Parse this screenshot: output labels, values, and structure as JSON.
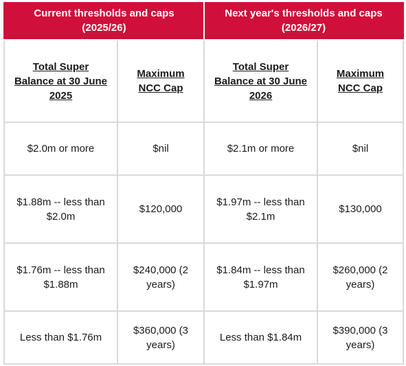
{
  "groups": {
    "current": "Current thresholds and caps (2025/26)",
    "next": "Next year's thresholds and caps (2026/27)"
  },
  "columns": [
    "Total Super Balance at 30 June 2025",
    "Maximum NCC Cap",
    "Total Super Balance at 30 June 2026",
    "Maximum NCC Cap"
  ],
  "rows": [
    [
      "$2.0m or more",
      "$nil",
      "$2.1m or more",
      "$nil"
    ],
    [
      "$1.88m -- less than $2.0m",
      "$120,000",
      "$1.97m -- less than $2.1m",
      "$130,000"
    ],
    [
      "$1.76m -- less than $1.88m",
      "$240,000 (2 years)",
      "$1.84m -- less than $1.97m",
      "$260,000 (2 years)"
    ],
    [
      "Less than $1.76m",
      "$360,000 (3 years)",
      "Less than $1.84m",
      "$390,000 (3 years)"
    ]
  ],
  "colors": {
    "header_bg": "#d0103a",
    "header_text": "#ffffff",
    "border": "#d9d9d9"
  }
}
